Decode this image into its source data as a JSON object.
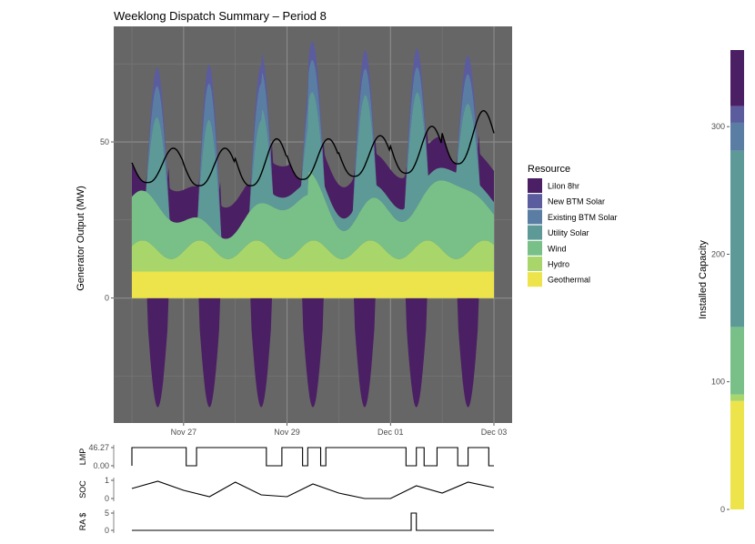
{
  "chart_data": [
    {
      "type": "area",
      "title": "Weeklong Dispatch Summary – Period  8",
      "ylabel": "Generator Output (MW)",
      "xlabel": "",
      "x_range_days": [
        "Nov 26",
        "Dec 03"
      ],
      "ylim": [
        -40,
        87
      ],
      "yticks": [
        0,
        50
      ],
      "xticks": [
        "Nov 27",
        "Nov 29",
        "Dec 01",
        "Dec 03"
      ],
      "xtick_day_offsets": [
        1,
        3,
        5,
        7
      ],
      "x_start": "Nov 26 00:00",
      "x_end": "Dec 03 00:00",
      "grid": true,
      "background": "#666666",
      "series": [
        {
          "name": "Geothermal",
          "color": "#ede34a",
          "baseload": 8.5
        },
        {
          "name": "Hydro",
          "color": "#a9d66b",
          "peak": 12
        },
        {
          "name": "Wind",
          "color": "#79c088",
          "peak": 28
        },
        {
          "name": "Utility Solar",
          "color": "#5d9a97",
          "peak": 33
        },
        {
          "name": "Existing BTM Solar",
          "color": "#5a7ea3",
          "peak": 10
        },
        {
          "name": "New BTM Solar",
          "color": "#5b5c9e",
          "peak": 6
        },
        {
          "name": "LiIon 8hr",
          "color": "#4b1f63",
          "charge_min": -35,
          "discharge_max": 10
        }
      ],
      "load_line": {
        "color": "#000000",
        "daily_min": [
          37,
          36,
          36,
          38,
          39,
          40,
          43
        ],
        "daily_max": [
          48,
          48,
          51,
          51,
          52,
          55,
          60
        ]
      },
      "legend": {
        "title": "Resource",
        "placement": "right",
        "items": [
          {
            "label": "LiIon 8hr",
            "color": "#4b1f63"
          },
          {
            "label": "New BTM Solar",
            "color": "#5b5c9e"
          },
          {
            "label": "Existing BTM Solar",
            "color": "#5a7ea3"
          },
          {
            "label": "Utility Solar",
            "color": "#5d9a97"
          },
          {
            "label": "Wind",
            "color": "#79c088"
          },
          {
            "label": "Hydro",
            "color": "#a9d66b"
          },
          {
            "label": "Geothermal",
            "color": "#ede34a"
          }
        ]
      }
    },
    {
      "type": "line",
      "ylabel": "LMP",
      "yticks": [
        "46.27",
        "0.00"
      ],
      "ylim": [
        0,
        46.27
      ],
      "high_intervals_days": [
        [
          0,
          1.05
        ],
        [
          1.25,
          2.6
        ],
        [
          2.9,
          3.3
        ],
        [
          3.4,
          3.65
        ],
        [
          3.75,
          5.3
        ],
        [
          5.5,
          5.65
        ],
        [
          5.9,
          6.3
        ],
        [
          6.5,
          6.9
        ]
      ],
      "high_value": 46.27,
      "low_value": 0.0
    },
    {
      "type": "line",
      "ylabel": "SOC",
      "yticks": [
        "1",
        "0"
      ],
      "ylim": [
        0,
        1
      ],
      "values_daily": [
        0.55,
        0.95,
        0.45,
        0.1,
        0.9,
        0.2,
        0.1,
        0.8,
        0.3,
        0.0,
        0.0,
        0.7,
        0.3,
        0.9,
        0.6
      ]
    },
    {
      "type": "line",
      "ylabel": "RA $",
      "yticks": [
        "5",
        "0"
      ],
      "ylim": [
        0,
        5
      ],
      "spike_day": [
        5.4,
        5.5
      ],
      "spike_value": 5
    },
    {
      "type": "bar",
      "ylabel": "Installed Capacity",
      "ylim": [
        0,
        360
      ],
      "yticks": [
        0,
        100,
        200,
        300
      ],
      "stacks": [
        {
          "name": "Geothermal",
          "value": 85,
          "color": "#ede34a"
        },
        {
          "name": "Hydro",
          "value": 5,
          "color": "#a9d66b"
        },
        {
          "name": "Wind",
          "value": 53,
          "color": "#79c088"
        },
        {
          "name": "Utility Solar",
          "value": 138,
          "color": "#5d9a97"
        },
        {
          "name": "Existing BTM Solar",
          "value": 22,
          "color": "#5a7ea3"
        },
        {
          "name": "New BTM Solar",
          "value": 13,
          "color": "#5b5c9e"
        },
        {
          "name": "LiIon 8hr",
          "value": 44,
          "color": "#4b1f63"
        }
      ]
    }
  ]
}
